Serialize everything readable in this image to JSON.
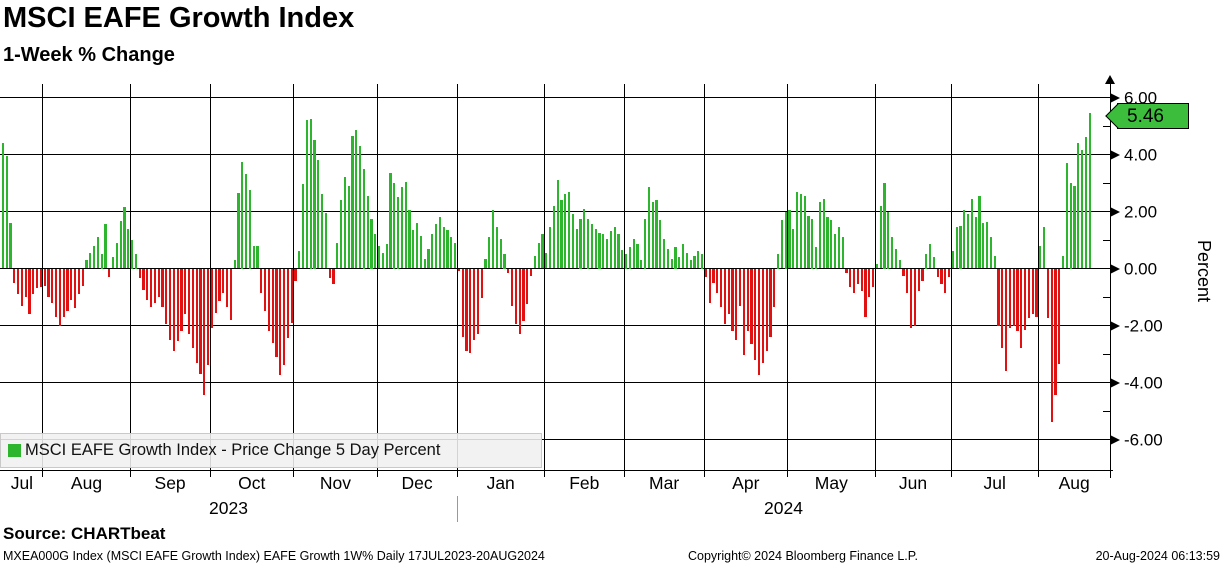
{
  "header": {
    "title": "MSCI EAFE Growth Index",
    "subtitle": "1-Week % Change"
  },
  "legend": {
    "swatch_color": "#2eb52e",
    "label": "MSCI EAFE Growth Index - Price Change 5 Day Percent"
  },
  "y_axis": {
    "title": "Percent",
    "tick_labels": [
      "6.00",
      "4.00",
      "2.00",
      "0.00",
      "-2.00",
      "-4.00",
      "-6.00"
    ],
    "tick_values": [
      6,
      4,
      2,
      0,
      -2,
      -4,
      -6
    ],
    "minor_tick_values": [
      5,
      3,
      1,
      -1,
      -3,
      -5
    ],
    "last_value_label": "5.46",
    "last_value_box_color": "#3cbe3c"
  },
  "x_axis": {
    "month_labels": [
      "Jul",
      "Aug",
      "Sep",
      "Oct",
      "Nov",
      "Dec",
      "Jan",
      "Feb",
      "Mar",
      "Apr",
      "May",
      "Jun",
      "Jul",
      "Aug"
    ],
    "year_labels": [
      "2023",
      "2024"
    ]
  },
  "footer": {
    "source": "Source: CHARTbeat",
    "description": "MXEA000G Index (MSCI EAFE Growth Index) EAFE Growth 1W%  Daily 17JUL2023-20AUG2024",
    "copyright": "Copyright© 2024 Bloomberg Finance L.P.",
    "timestamp": "20-Aug-2024 06:13:59"
  },
  "chart_data": {
    "type": "bar",
    "title": "MSCI EAFE Growth Index",
    "subtitle": "1-Week % Change",
    "series_name": "MSCI EAFE Growth Index - Price Change 5 Day Percent",
    "ylabel": "Percent",
    "ylim": [
      -7.1,
      6.45
    ],
    "grid": true,
    "legend_position": "bottom-left",
    "bar_colors": {
      "positive": "#2eb52e",
      "negative": "#e21111"
    },
    "period": "17JUL2023-20AUG2024",
    "frequency_note": "Daily 1-week rolling % change (values approximate, read from chart)",
    "last_value": 5.46,
    "months": [
      {
        "label": "Jul",
        "year": 2023,
        "values": [
          4.4,
          3.95,
          1.6,
          -0.5,
          -0.9,
          -1.3,
          -1.0,
          -1.6,
          -0.9,
          -0.7,
          -0.65
        ]
      },
      {
        "label": "Aug",
        "year": 2023,
        "values": [
          -0.6,
          -1.0,
          -1.2,
          -1.7,
          -2.0,
          -1.7,
          -1.5,
          -1.1,
          -1.4,
          -0.9,
          -0.6,
          0.3,
          0.55,
          0.8,
          1.1,
          0.5,
          1.55,
          -0.3,
          0.4,
          0.9,
          1.65,
          2.15,
          1.4
        ]
      },
      {
        "label": "Sep",
        "year": 2023,
        "values": [
          1.0,
          0.5,
          -0.35,
          -0.75,
          -1.1,
          -1.35,
          -1.2,
          -1.0,
          -1.35,
          -1.95,
          -2.5,
          -2.9,
          -2.55,
          -2.2,
          -1.6,
          -2.3,
          -2.8,
          -3.3,
          -3.7,
          -4.45,
          -3.4
        ]
      },
      {
        "label": "Oct",
        "year": 2023,
        "values": [
          -2.1,
          -1.55,
          -1.15,
          -0.85,
          -1.35,
          -1.8,
          0.3,
          2.65,
          3.75,
          3.3,
          2.75,
          0.8,
          0.8,
          -0.85,
          -1.5,
          -2.2,
          -2.6,
          -3.1,
          -3.75,
          -3.4,
          -2.45,
          -1.9
        ]
      },
      {
        "label": "Nov",
        "year": 2023,
        "values": [
          -0.45,
          0.6,
          2.95,
          5.2,
          5.25,
          4.5,
          3.8,
          2.6,
          1.95,
          -0.35,
          -0.55,
          0.9,
          2.4,
          3.2,
          2.9,
          4.65,
          4.85,
          4.3,
          3.5,
          2.55,
          1.75,
          1.2
        ]
      },
      {
        "label": "Dec",
        "year": 2023,
        "values": [
          0.8,
          0.55,
          0.85,
          3.35,
          3.0,
          2.5,
          2.85,
          3.05,
          2.05,
          1.35,
          1.6,
          1.15,
          0.35,
          0.7,
          1.2,
          1.55,
          1.8,
          1.45,
          1.35,
          1.1,
          0.9
        ]
      },
      {
        "label": "Jan",
        "year": 2024,
        "values": [
          -0.1,
          -2.4,
          -2.9,
          -2.95,
          -2.5,
          -2.3,
          -1.05,
          0.35,
          1.1,
          2.05,
          1.45,
          1.05,
          0.5,
          -0.15,
          -1.3,
          -1.95,
          -2.3,
          -1.85,
          -1.25,
          -0.25,
          0.45,
          0.9,
          1.2
        ]
      },
      {
        "label": "Feb",
        "year": 2024,
        "values": [
          0.55,
          1.45,
          2.2,
          3.1,
          2.4,
          2.6,
          2.7,
          1.9,
          1.4,
          1.75,
          2.1,
          1.75,
          1.55,
          1.4,
          1.25,
          1.2,
          1.05,
          1.3,
          1.45,
          1.2,
          0.65
        ]
      },
      {
        "label": "Mar",
        "year": 2024,
        "values": [
          0.5,
          0.75,
          1.05,
          0.85,
          0.3,
          1.75,
          2.85,
          2.35,
          2.4,
          1.7,
          1.05,
          0.7,
          0.35,
          0.75,
          0.4,
          0.85,
          0.55,
          0.3,
          0.45,
          0.6,
          0.5
        ]
      },
      {
        "label": "Apr",
        "year": 2024,
        "values": [
          -0.3,
          -1.2,
          -0.5,
          -0.85,
          -1.35,
          -1.95,
          -1.6,
          -2.2,
          -2.5,
          -1.3,
          -3.05,
          -2.2,
          -2.65,
          -3.2,
          -3.75,
          -3.3,
          -2.9,
          -2.4,
          -1.35,
          0.5,
          1.7,
          2.0
        ]
      },
      {
        "label": "May",
        "year": 2024,
        "values": [
          2.05,
          1.4,
          2.7,
          2.6,
          2.55,
          1.85,
          1.75,
          0.75,
          2.35,
          2.45,
          1.8,
          1.7,
          1.2,
          1.45,
          1.1,
          -0.15,
          -0.65,
          -0.85,
          -0.55,
          -0.8,
          -1.7,
          -1.0,
          -0.65
        ]
      },
      {
        "label": "Jun",
        "year": 2024,
        "values": [
          0.15,
          2.2,
          3.0,
          2.0,
          1.1,
          0.7,
          0.3,
          -0.25,
          -0.85,
          -2.1,
          -2.0,
          -0.8,
          -0.45,
          0.5,
          0.85,
          0.4,
          -0.3,
          -0.55,
          -0.85,
          -0.3
        ]
      },
      {
        "label": "Jul",
        "year": 2024,
        "values": [
          0.6,
          1.45,
          1.5,
          2.05,
          1.9,
          2.45,
          1.8,
          2.55,
          1.6,
          1.62,
          1.1,
          0.45,
          -2.0,
          -2.8,
          -3.6,
          -2.1,
          -2.0,
          -2.2,
          -2.8,
          -2.15,
          -1.75,
          -1.6,
          -1.7
        ]
      },
      {
        "label": "Aug",
        "year": 2024,
        "values": [
          0.8,
          1.45,
          -1.75,
          -5.4,
          -4.45,
          -3.35,
          0.45,
          3.7,
          3.0,
          2.9,
          4.4,
          4.15,
          4.6,
          5.46
        ]
      }
    ]
  }
}
